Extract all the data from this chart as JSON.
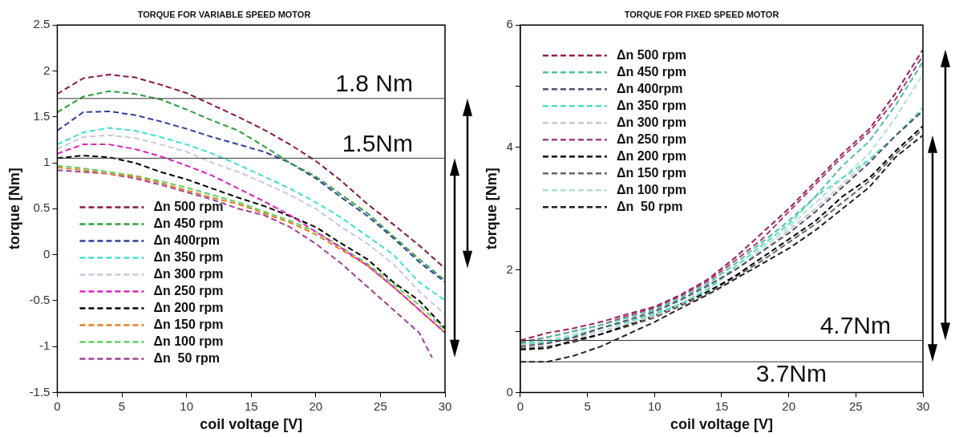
{
  "chart_data": [
    {
      "type": "line",
      "title": "TORQUE FOR VARIABLE SPEED MOTOR",
      "xlabel": "coil voltage [V]",
      "ylabel": "torque [Nm]",
      "x": [
        0,
        2,
        4,
        6,
        8,
        10,
        12,
        14,
        16,
        18,
        20,
        22,
        24,
        26,
        28,
        30
      ],
      "xlim": [
        0,
        30
      ],
      "xticks": [
        0,
        5,
        10,
        15,
        20,
        25,
        30
      ],
      "ylim": [
        -1.5,
        2.5
      ],
      "yticks": [
        -1.5,
        -1,
        -0.5,
        0,
        0.5,
        1,
        1.5,
        2,
        2.5
      ],
      "grid": false,
      "legend": "bottom left",
      "marker": "none",
      "line_style": "dashed",
      "series": [
        {
          "name": "Δn 500 rpm",
          "color": "#8b1a3a",
          "values": [
            1.75,
            1.92,
            1.96,
            1.93,
            1.85,
            1.76,
            1.63,
            1.5,
            1.36,
            1.2,
            1.02,
            0.8,
            0.55,
            0.33,
            0.1,
            -0.15
          ]
        },
        {
          "name": "Δn 450 rpm",
          "color": "#2e9e3e",
          "values": [
            1.55,
            1.72,
            1.78,
            1.75,
            1.69,
            1.58,
            1.46,
            1.35,
            1.18,
            1.0,
            0.85,
            0.65,
            0.45,
            0.2,
            -0.05,
            -0.28
          ]
        },
        {
          "name": "Δn 400rpm",
          "color": "#3040a0",
          "values": [
            1.35,
            1.55,
            1.56,
            1.52,
            1.45,
            1.37,
            1.28,
            1.2,
            1.12,
            1.0,
            0.83,
            0.62,
            0.42,
            0.18,
            -0.08,
            -0.3
          ]
        },
        {
          "name": "Δn 350 rpm",
          "color": "#40e0d0",
          "values": [
            1.2,
            1.33,
            1.38,
            1.35,
            1.28,
            1.2,
            1.1,
            0.98,
            0.85,
            0.72,
            0.57,
            0.4,
            0.2,
            0.0,
            -0.3,
            -0.5
          ]
        },
        {
          "name": "Δn 300 rpm",
          "color": "#c8c8dc",
          "values": [
            1.15,
            1.28,
            1.3,
            1.27,
            1.2,
            1.12,
            1.0,
            0.9,
            0.78,
            0.65,
            0.5,
            0.3,
            0.12,
            -0.1,
            -0.4,
            -0.65
          ]
        },
        {
          "name": "Δn 250 rpm",
          "color": "#e020c0",
          "values": [
            1.1,
            1.2,
            1.2,
            1.15,
            1.07,
            0.97,
            0.86,
            0.72,
            0.58,
            0.43,
            0.25,
            0.07,
            -0.12,
            -0.35,
            -0.6,
            -0.85
          ]
        },
        {
          "name": "Δn 200 rpm",
          "color": "#000000",
          "values": [
            1.05,
            1.08,
            1.06,
            1.0,
            0.9,
            0.82,
            0.72,
            0.62,
            0.53,
            0.42,
            0.3,
            0.12,
            -0.05,
            -0.3,
            -0.5,
            -0.8
          ]
        },
        {
          "name": "Δn 150 rpm",
          "color": "#e08020",
          "values": [
            0.95,
            0.92,
            0.88,
            0.85,
            0.78,
            0.7,
            0.62,
            0.55,
            0.45,
            0.35,
            0.22,
            0.05,
            -0.12,
            -0.35,
            -0.6,
            -0.85
          ]
        },
        {
          "name": "Δn 100 rpm",
          "color": "#60d060",
          "values": [
            0.97,
            0.94,
            0.9,
            0.86,
            0.8,
            0.73,
            0.65,
            0.57,
            0.47,
            0.37,
            0.25,
            0.08,
            -0.1,
            -0.32,
            -0.55,
            -0.82
          ]
        },
        {
          "name": "Δn  50 rpm",
          "color": "#a04090",
          "x": [
            0,
            2,
            4,
            6,
            8,
            10,
            12,
            14,
            16,
            18,
            20,
            22,
            24,
            26,
            28,
            29
          ],
          "values": [
            0.92,
            0.9,
            0.88,
            0.83,
            0.76,
            0.68,
            0.6,
            0.5,
            0.43,
            0.3,
            0.12,
            -0.1,
            -0.35,
            -0.6,
            -0.85,
            -1.12
          ]
        }
      ],
      "ref_lines": [
        {
          "axis": "y",
          "value": 1.7,
          "label": "1.8 Nm"
        },
        {
          "axis": "y",
          "value": 1.05,
          "label": "1.5Nm"
        }
      ]
    },
    {
      "type": "line",
      "title": "TORQUE FOR FIXED SPEED MOTOR",
      "xlabel": "coil voltage [V]",
      "ylabel": "torque [Nm]",
      "x": [
        0,
        2,
        4,
        6,
        8,
        10,
        12,
        14,
        16,
        18,
        20,
        22,
        24,
        26,
        28,
        30
      ],
      "xlim": [
        0,
        30
      ],
      "xticks": [
        0,
        5,
        10,
        15,
        20,
        25,
        30
      ],
      "ylim": [
        0,
        6
      ],
      "yticks": [
        0,
        {
          "value": 1,
          "label": null
        },
        2,
        {
          "value": 3,
          "label": null
        },
        4,
        {
          "value": 5,
          "label": null
        },
        6
      ],
      "grid": false,
      "legend": "top left",
      "marker": "none",
      "line_style": "dashed",
      "series": [
        {
          "name": "Δn 500 rpm",
          "color": "#9b2050",
          "values": [
            0.85,
            0.97,
            1.05,
            1.15,
            1.28,
            1.4,
            1.6,
            1.85,
            2.2,
            2.6,
            3.0,
            3.45,
            3.9,
            4.3,
            4.9,
            5.6
          ]
        },
        {
          "name": "Δn 450 rpm",
          "color": "#50c0a0",
          "values": [
            0.8,
            0.9,
            1.0,
            1.1,
            1.22,
            1.35,
            1.55,
            1.78,
            2.1,
            2.45,
            2.8,
            3.2,
            3.7,
            4.1,
            4.7,
            5.4
          ]
        },
        {
          "name": "Δn 400rpm",
          "color": "#505070",
          "values": [
            0.75,
            0.8,
            0.9,
            1.05,
            1.18,
            1.32,
            1.52,
            1.75,
            2.0,
            2.3,
            2.6,
            2.95,
            3.35,
            3.75,
            4.2,
            4.6
          ]
        },
        {
          "name": "Δn 350 rpm",
          "color": "#50e0c0",
          "values": [
            0.8,
            0.82,
            0.92,
            1.05,
            1.15,
            1.28,
            1.45,
            1.68,
            2.05,
            2.4,
            2.75,
            3.2,
            3.5,
            3.8,
            4.2,
            4.65
          ]
        },
        {
          "name": "Δn 300 rpm",
          "color": "#c8c8c8",
          "values": [
            0.78,
            0.8,
            0.88,
            1.0,
            1.12,
            1.25,
            1.45,
            1.7,
            2.0,
            2.3,
            2.65,
            3.0,
            3.4,
            3.8,
            4.2,
            4.6
          ]
        },
        {
          "name": "Δn 250 rpm",
          "color": "#a04080",
          "values": [
            0.82,
            0.9,
            1.0,
            1.1,
            1.25,
            1.38,
            1.58,
            1.82,
            2.15,
            2.5,
            2.95,
            3.4,
            3.85,
            4.25,
            4.8,
            5.5
          ]
        },
        {
          "name": "Δn 200 rpm",
          "color": "#000000",
          "values": [
            0.7,
            0.72,
            0.85,
            0.95,
            1.1,
            1.25,
            1.45,
            1.65,
            1.9,
            2.2,
            2.5,
            2.8,
            3.2,
            3.5,
            3.95,
            4.35
          ]
        },
        {
          "name": "Δn 150 rpm",
          "color": "#706060",
          "values": [
            0.72,
            0.75,
            0.82,
            0.95,
            1.08,
            1.22,
            1.42,
            1.62,
            1.88,
            2.15,
            2.45,
            2.75,
            3.1,
            3.45,
            3.9,
            4.3
          ]
        },
        {
          "name": "Δn 100 rpm",
          "color": "#b0e0d0",
          "values": [
            0.78,
            0.85,
            0.95,
            1.05,
            1.15,
            1.3,
            1.5,
            1.72,
            2.0,
            2.35,
            2.7,
            3.1,
            3.5,
            3.9,
            4.5,
            5.2
          ]
        },
        {
          "name": "Δn  50 rpm",
          "color": "#202020",
          "values": [
            0.5,
            0.5,
            0.6,
            0.75,
            0.95,
            1.15,
            1.38,
            1.6,
            1.85,
            2.1,
            2.35,
            2.65,
            3.0,
            3.35,
            3.85,
            4.2
          ]
        }
      ],
      "ref_lines": [
        {
          "axis": "y",
          "value": 0.85,
          "label": "4.7Nm"
        },
        {
          "axis": "y",
          "value": 0.5,
          "label": "3.7Nm"
        }
      ]
    }
  ]
}
